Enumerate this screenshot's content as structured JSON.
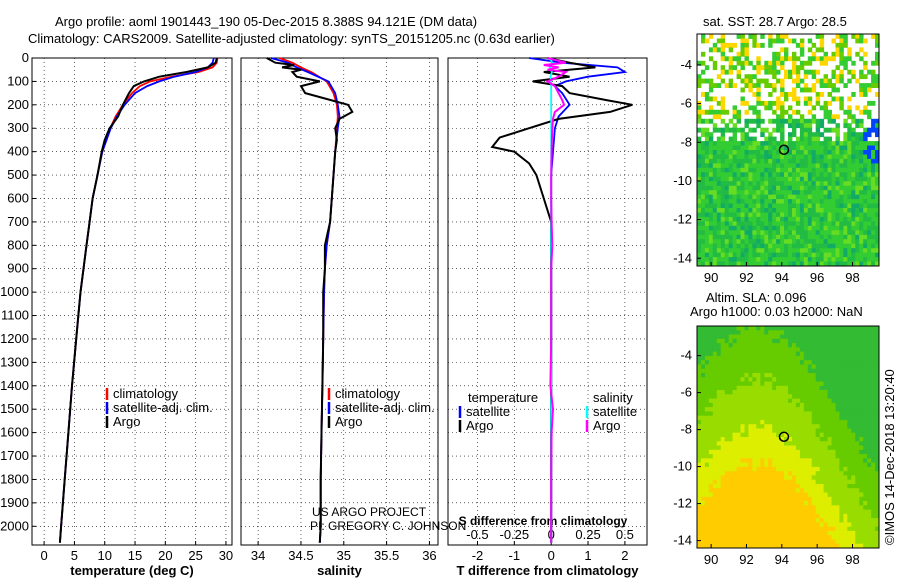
{
  "title": {
    "line1": "Argo profile: aoml 1901443_190 05-Dec-2015 8.388S 94.121E (DM data)",
    "line2": "Climatology: CARS2009. Satellite-adjusted climatology: synTS_20151205.nc (0.63d earlier)"
  },
  "right_top_title": "sat. SST: 28.7 Argo: 28.5",
  "right_bottom_title1": "Altim. SLA: 0.096",
  "right_bottom_title2": "Argo h1000: 0.03 h2000: NaN",
  "footer_credit": "©IMOS 14-Dec-2018 13:20:40",
  "project_text1": "US ARGO PROJECT",
  "project_text2": "PI: GREGORY C. JOHNSON",
  "colors": {
    "red": "#ff0000",
    "blue": "#0000ff",
    "black": "#000000",
    "cyan": "#00ffff",
    "magenta": "#ff00ff"
  },
  "chart_data": [
    {
      "type": "line",
      "name": "temperature",
      "xlabel": "temperature (deg C)",
      "ylabel": "",
      "xlim": [
        -2,
        31
      ],
      "ylim": [
        2080,
        0
      ],
      "xticks": [
        "0",
        "5",
        "10",
        "15",
        "20",
        "25",
        "30"
      ],
      "xtick_values": [
        0,
        5,
        10,
        15,
        20,
        25,
        30
      ],
      "yticks": [
        "0",
        "100",
        "200",
        "300",
        "400",
        "500",
        "600",
        "700",
        "800",
        "900",
        "1000",
        "1100",
        "1200",
        "1300",
        "1400",
        "1500",
        "1600",
        "1700",
        "1800",
        "1900",
        "2000"
      ],
      "ytick_values": [
        0,
        100,
        200,
        300,
        400,
        500,
        600,
        700,
        800,
        900,
        1000,
        1100,
        1200,
        1300,
        1400,
        1500,
        1600,
        1700,
        1800,
        1900,
        2000
      ],
      "legend": [
        "climatology",
        "satellite-adj. clim.",
        "Argo"
      ],
      "series": [
        {
          "name": "climatology",
          "color": "#ff0000",
          "depth": [
            0,
            20,
            40,
            60,
            80,
            100,
            120,
            150,
            200,
            250,
            300,
            400,
            500,
            600,
            700,
            800,
            900,
            1000,
            1200,
            1400,
            1600,
            1800,
            2000,
            2070
          ],
          "values": [
            28.6,
            28.5,
            27.8,
            25.5,
            21.0,
            17.5,
            15.8,
            14.5,
            13.0,
            11.8,
            10.9,
            9.6,
            8.8,
            8.0,
            7.5,
            7.0,
            6.5,
            6.0,
            5.3,
            4.6,
            4.0,
            3.4,
            2.8,
            2.6
          ]
        },
        {
          "name": "satellite-adj. clim.",
          "color": "#0000ff",
          "depth": [
            0,
            20,
            40,
            60,
            80,
            100,
            120,
            150,
            200,
            250,
            300,
            400,
            500,
            600,
            700,
            800,
            900,
            1000,
            1200,
            1400,
            1600,
            1800,
            2000,
            2070
          ],
          "values": [
            28.0,
            27.8,
            27.0,
            25.0,
            21.5,
            19.0,
            17.0,
            15.0,
            13.3,
            12.0,
            11.0,
            9.6,
            8.8,
            8.0,
            7.5,
            7.0,
            6.5,
            6.0,
            5.3,
            4.6,
            4.0,
            3.4,
            2.8,
            2.6
          ]
        },
        {
          "name": "Argo",
          "color": "#000000",
          "depth": [
            0,
            20,
            40,
            60,
            80,
            100,
            120,
            150,
            200,
            250,
            300,
            350,
            400,
            500,
            600,
            700,
            800,
            900,
            1000,
            1200,
            1400,
            1600,
            1800,
            2000,
            2070
          ],
          "values": [
            28.5,
            28.3,
            27.0,
            23.5,
            19.0,
            16.5,
            14.8,
            14.0,
            13.0,
            12.2,
            10.8,
            10.0,
            9.5,
            8.8,
            8.0,
            7.5,
            7.0,
            6.5,
            6.0,
            5.3,
            4.6,
            4.0,
            3.4,
            2.8,
            2.6
          ]
        }
      ]
    },
    {
      "type": "line",
      "name": "salinity",
      "xlabel": "salinity",
      "xlim": [
        33.8,
        36.1
      ],
      "ylim": [
        2080,
        0
      ],
      "xticks": [
        "34",
        "34.5",
        "35",
        "35.5",
        "36"
      ],
      "xtick_values": [
        34,
        34.5,
        35,
        35.5,
        36
      ],
      "legend": [
        "climatology",
        "satellite-adj. clim.",
        "Argo"
      ],
      "series": [
        {
          "name": "climatology",
          "color": "#ff0000",
          "depth": [
            0,
            20,
            40,
            60,
            100,
            150,
            200,
            250,
            300,
            400,
            500,
            600,
            700,
            800,
            900,
            1000,
            1200,
            1400,
            1600,
            1800,
            2000,
            2070
          ],
          "values": [
            34.25,
            34.4,
            34.5,
            34.62,
            34.8,
            34.88,
            34.92,
            34.93,
            34.92,
            34.9,
            34.88,
            34.86,
            34.84,
            34.8,
            34.78,
            34.77,
            34.76,
            34.75,
            34.74,
            34.73,
            34.73,
            34.72
          ]
        },
        {
          "name": "satellite-adj. clim.",
          "color": "#0000ff",
          "depth": [
            0,
            20,
            40,
            60,
            100,
            150,
            200,
            250,
            300,
            400,
            500,
            600,
            700,
            800,
            900,
            1000,
            1200,
            1400,
            1600,
            1800,
            2000,
            2070
          ],
          "values": [
            34.15,
            34.35,
            34.45,
            34.58,
            34.82,
            34.9,
            34.93,
            34.95,
            34.93,
            34.9,
            34.88,
            34.86,
            34.84,
            34.8,
            34.78,
            34.77,
            34.76,
            34.75,
            34.74,
            34.73,
            34.73,
            34.72
          ]
        },
        {
          "name": "Argo",
          "color": "#000000",
          "depth": [
            0,
            20,
            30,
            40,
            50,
            60,
            80,
            100,
            120,
            150,
            180,
            200,
            230,
            260,
            300,
            350,
            400,
            500,
            600,
            700,
            800,
            900,
            1000,
            1200,
            1400,
            1600,
            1800,
            2000,
            2070
          ],
          "values": [
            34.1,
            34.2,
            34.42,
            34.28,
            34.5,
            34.4,
            34.45,
            34.72,
            34.5,
            34.55,
            34.85,
            35.05,
            35.1,
            34.95,
            34.9,
            34.92,
            34.9,
            34.88,
            34.86,
            34.84,
            34.78,
            34.78,
            34.76,
            34.76,
            34.75,
            34.74,
            34.73,
            34.73,
            34.72
          ]
        }
      ]
    },
    {
      "type": "line",
      "name": "differences",
      "xlabel": "T difference from climatology",
      "x2label": "S difference from climatology",
      "xlim": [
        -2.8,
        2.6
      ],
      "ylim": [
        2080,
        0
      ],
      "xticks": [
        "-2",
        "-1",
        "0",
        "1",
        "2"
      ],
      "xtick_values": [
        -2,
        -1,
        0,
        1,
        2
      ],
      "x2ticks": [
        "-0.5",
        "-0.25",
        "0",
        "0.25",
        "0.5"
      ],
      "x2tick_values": [
        -0.5,
        -0.25,
        0,
        0.25,
        0.5
      ],
      "legend_left_title": "temperature",
      "legend_right_title": "salinity",
      "legend_left": [
        "satellite",
        "Argo"
      ],
      "legend_right": [
        "satellite",
        "Argo"
      ],
      "series": [
        {
          "name": "T satellite",
          "color": "#0000ff",
          "depth": [
            0,
            20,
            40,
            60,
            80,
            100,
            120,
            150,
            200,
            250,
            300,
            400,
            500,
            800,
            1200,
            2070
          ],
          "values": [
            -0.6,
            0.3,
            1.8,
            2.0,
            1.0,
            0.4,
            0.1,
            0.3,
            0.5,
            0.2,
            0.1,
            0.05,
            0.0,
            0.0,
            0.0,
            0.0
          ]
        },
        {
          "name": "T Argo",
          "color": "#000000",
          "depth": [
            0,
            20,
            40,
            60,
            80,
            100,
            120,
            150,
            180,
            200,
            230,
            260,
            300,
            340,
            380,
            400,
            450,
            500,
            600,
            700,
            800,
            900,
            1000,
            1200,
            1400,
            1600,
            1800,
            2000,
            2070
          ],
          "values": [
            -0.1,
            0.5,
            1.2,
            -0.2,
            0.5,
            -0.5,
            0.3,
            0.5,
            1.5,
            2.2,
            1.6,
            0.2,
            -0.6,
            -1.4,
            -1.6,
            -1.0,
            -0.6,
            -0.4,
            -0.2,
            0.0,
            0.0,
            0.0,
            0.0,
            0.0,
            0.0,
            0.0,
            0.0,
            0.0,
            0.0
          ]
        },
        {
          "name": "S satellite",
          "color": "#00ffff",
          "depth": [
            0,
            20,
            40,
            60,
            80,
            100,
            150,
            200,
            300,
            400,
            600,
            800,
            1200,
            1600,
            2070
          ],
          "values": [
            -0.05,
            0.03,
            -0.04,
            0.02,
            -0.02,
            0.0,
            0.0,
            0.0,
            0.0,
            0.0,
            0.0,
            0.0,
            0.0,
            0.0,
            0.0
          ]
        },
        {
          "name": "S Argo",
          "color": "#ff00ff",
          "depth": [
            0,
            20,
            30,
            40,
            50,
            60,
            80,
            100,
            120,
            150,
            180,
            200,
            230,
            260,
            300,
            350,
            400,
            500,
            600,
            700,
            800,
            900,
            1000,
            1200,
            1400,
            1500,
            1600,
            1800,
            2000,
            2070
          ],
          "values": [
            -0.1,
            0.4,
            -0.2,
            0.2,
            -0.1,
            0.4,
            0.2,
            -0.1,
            0.1,
            0.2,
            0.3,
            0.35,
            0.1,
            0.05,
            0.03,
            0.02,
            0.01,
            0.0,
            0.0,
            0.01,
            0.03,
            0.0,
            0.0,
            0.0,
            -0.02,
            0.05,
            0.01,
            0.0,
            0.0,
            0.0
          ]
        }
      ]
    },
    {
      "type": "heatmap",
      "name": "sst-map",
      "title": "sat. SST: 28.7 Argo: 28.5",
      "xticks": [
        "90",
        "92",
        "94",
        "96",
        "98"
      ],
      "xtick_values": [
        90,
        92,
        94,
        96,
        98
      ],
      "yticks": [
        "-4",
        "-6",
        "-8",
        "-10",
        "-12",
        "-14"
      ],
      "ytick_values": [
        -4,
        -6,
        -8,
        -10,
        -12,
        -14
      ],
      "xlim": [
        89.2,
        99.5
      ],
      "ylim": [
        -14.4,
        -2.4
      ],
      "float_position": [
        94.121,
        -8.388
      ]
    },
    {
      "type": "heatmap",
      "name": "sla-map",
      "title": "Altim. SLA: 0.096",
      "xticks": [
        "90",
        "92",
        "94",
        "96",
        "98"
      ],
      "xtick_values": [
        90,
        92,
        94,
        96,
        98
      ],
      "yticks": [
        "-4",
        "-6",
        "-8",
        "-10",
        "-12",
        "-14"
      ],
      "ytick_values": [
        -4,
        -6,
        -8,
        -10,
        -12,
        -14
      ],
      "xlim": [
        89.2,
        99.5
      ],
      "ylim": [
        -14.4,
        -2.4
      ],
      "float_position": [
        94.121,
        -8.388
      ]
    }
  ]
}
